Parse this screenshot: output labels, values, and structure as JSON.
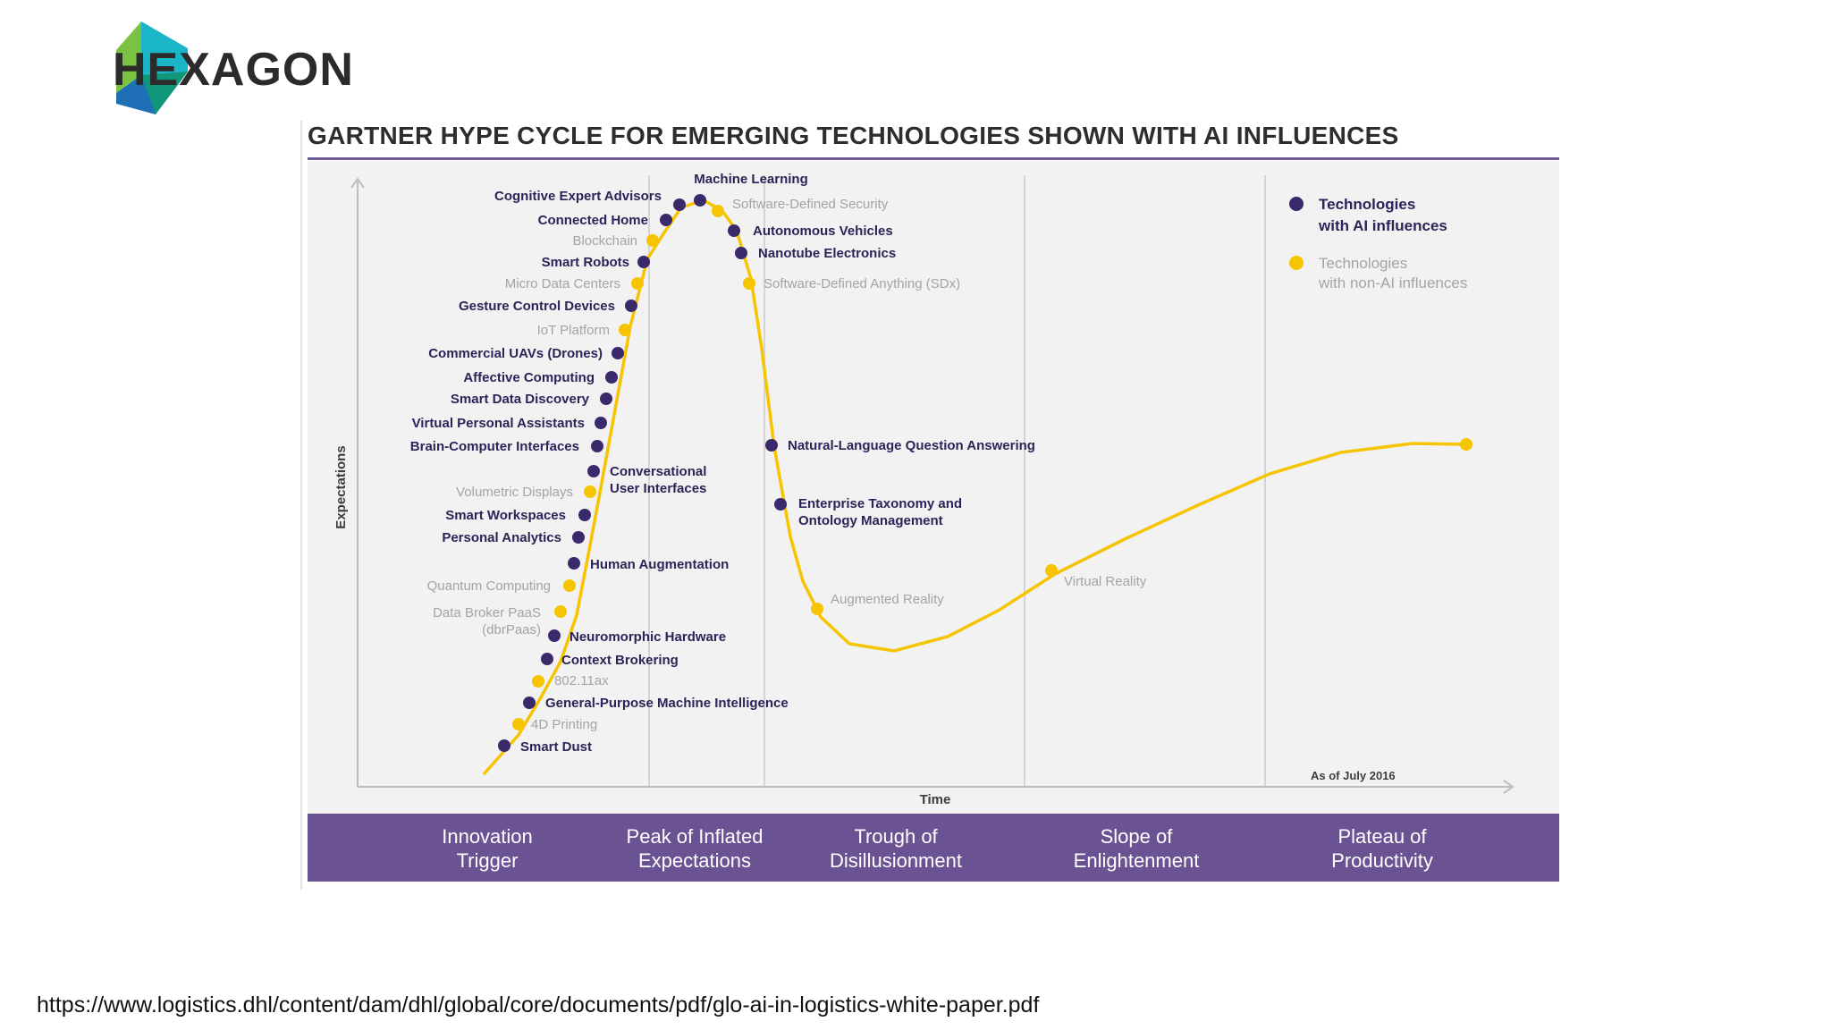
{
  "brand": {
    "name": "HEXAGON",
    "logo": "hexagon-logo-icon",
    "colors": {
      "teal": "#1ab6c8",
      "green": "#7cc242",
      "blue": "#1e6fb5",
      "dark": "#2b2b2b"
    }
  },
  "chart": {
    "title": "GARTNER HYPE CYCLE FOR EMERGING TECHNOLOGIES SHOWN WITH AI INFLUENCES",
    "y_axis_label": "Expectations",
    "x_axis_label": "Time",
    "as_of": "As of July 2016",
    "legend": [
      {
        "label_line1": "Technologies",
        "label_line2": "with AI influences",
        "color": "#3b2a6b"
      },
      {
        "label_line1": "Technologies",
        "label_line2": "with non-AI influences",
        "color": "#f6c400"
      }
    ],
    "colors": {
      "ai": "#3b2a6b",
      "non_ai": "#f6c400",
      "curve": "#f6c400",
      "band": "#6b5293"
    },
    "phases": [
      "Innovation\nTrigger",
      "Peak of Inflated\nExpectations",
      "Trough of\nDisillusionment",
      "Slope of\nEnlightenment",
      "Plateau of\nProductivity"
    ],
    "technologies": [
      {
        "name": "Smart Dust",
        "ai": true
      },
      {
        "name": "4D Printing",
        "ai": false
      },
      {
        "name": "General-Purpose Machine Intelligence",
        "ai": true
      },
      {
        "name": "802.11ax",
        "ai": false
      },
      {
        "name": "Context Brokering",
        "ai": true
      },
      {
        "name": "Neuromorphic Hardware",
        "ai": true
      },
      {
        "name": "Data Broker PaaS",
        "name2": "(dbrPaas)",
        "ai": false
      },
      {
        "name": "Quantum Computing",
        "ai": false
      },
      {
        "name": "Human Augmentation",
        "ai": true
      },
      {
        "name": "Personal Analytics",
        "ai": true
      },
      {
        "name": "Smart Workspaces",
        "ai": true
      },
      {
        "name": "Volumetric Displays",
        "ai": false
      },
      {
        "name": "Conversational",
        "name2": "User Interfaces",
        "ai": true
      },
      {
        "name": "Brain-Computer Interfaces",
        "ai": true
      },
      {
        "name": "Virtual Personal Assistants",
        "ai": true
      },
      {
        "name": "Smart Data Discovery",
        "ai": true
      },
      {
        "name": "Affective Computing",
        "ai": true
      },
      {
        "name": "Commercial UAVs (Drones)",
        "ai": true
      },
      {
        "name": "IoT Platform",
        "ai": false
      },
      {
        "name": "Gesture Control Devices",
        "ai": true
      },
      {
        "name": "Micro Data Centers",
        "ai": false
      },
      {
        "name": "Smart Robots",
        "ai": true
      },
      {
        "name": "Blockchain",
        "ai": false
      },
      {
        "name": "Connected Home",
        "ai": true
      },
      {
        "name": "Cognitive Expert Advisors",
        "ai": true
      },
      {
        "name": "Machine Learning",
        "ai": true
      },
      {
        "name": "Software-Defined Security",
        "ai": false
      },
      {
        "name": "Autonomous Vehicles",
        "ai": true
      },
      {
        "name": "Nanotube Electronics",
        "ai": true
      },
      {
        "name": "Software-Defined Anything (SDx)",
        "ai": false
      },
      {
        "name": "Natural-Language Question Answering",
        "ai": true
      },
      {
        "name": "Enterprise Taxonomy and",
        "name2": "Ontology Management",
        "ai": true
      },
      {
        "name": "Augmented Reality",
        "ai": false
      },
      {
        "name": "Virtual Reality",
        "ai": false
      }
    ]
  },
  "footer": {
    "source_url": "https://www.logistics.dhl/content/dam/dhl/global/core/documents/pdf/glo-ai-in-logistics-white-paper.pdf"
  }
}
